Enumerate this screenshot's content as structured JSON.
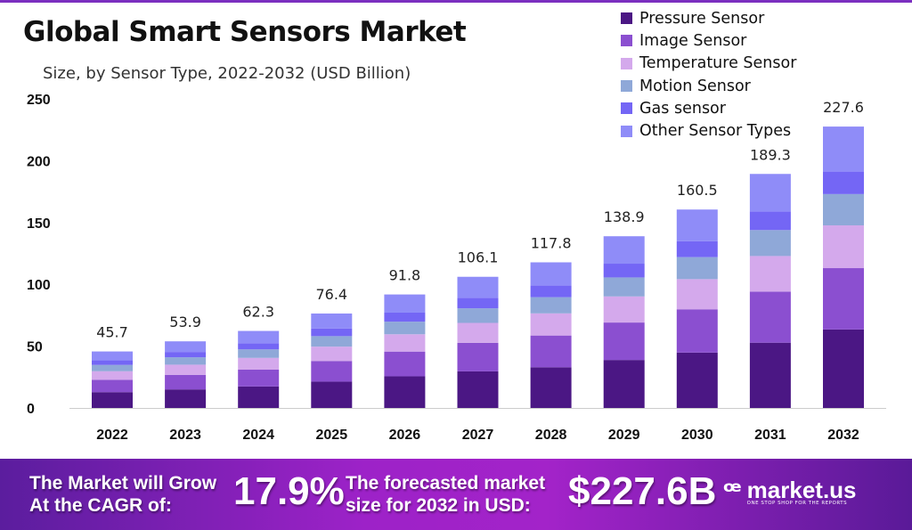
{
  "chart_data": {
    "type": "bar",
    "stacked": true,
    "title": "Global Smart Sensors Market",
    "subtitle": "Size, by Sensor Type, 2022-2032 (USD Billion)",
    "categories": [
      "2022",
      "2023",
      "2024",
      "2025",
      "2026",
      "2027",
      "2028",
      "2029",
      "2030",
      "2031",
      "2032"
    ],
    "totals": [
      "45.7",
      "53.9",
      "62.3",
      "76.4",
      "91.8",
      "106.1",
      "117.8",
      "138.9",
      "160.5",
      "189.3",
      "227.6"
    ],
    "series": [
      {
        "name": "Pressure Sensor",
        "color": "#4b1784",
        "values": [
          12.8,
          15.0,
          17.4,
          21.3,
          25.6,
          29.6,
          32.9,
          38.8,
          44.8,
          52.8,
          63.5
        ]
      },
      {
        "name": "Image Sensor",
        "color": "#8b4fd0",
        "values": [
          10.0,
          11.8,
          13.6,
          16.7,
          20.0,
          23.1,
          25.7,
          30.3,
          35.0,
          41.3,
          49.6
        ]
      },
      {
        "name": "Temperature Sensor",
        "color": "#d4a9ec",
        "values": [
          6.9,
          8.2,
          9.5,
          11.6,
          14.0,
          16.1,
          17.9,
          21.1,
          24.4,
          28.8,
          34.6
        ]
      },
      {
        "name": "Motion Sensor",
        "color": "#8fa8d8",
        "values": [
          5.1,
          6.0,
          6.9,
          8.5,
          10.2,
          11.8,
          13.1,
          15.4,
          17.8,
          21.0,
          25.3
        ]
      },
      {
        "name": "Gas sensor",
        "color": "#7466f5",
        "values": [
          3.7,
          4.3,
          5.0,
          6.1,
          7.3,
          8.5,
          9.4,
          11.1,
          12.8,
          15.1,
          18.2
        ]
      },
      {
        "name": "Other Sensor Types",
        "color": "#8f8cf8",
        "values": [
          7.2,
          8.6,
          9.9,
          12.2,
          14.7,
          17.0,
          18.8,
          22.2,
          25.7,
          30.3,
          36.4
        ]
      }
    ],
    "yticks": [
      "0",
      "50",
      "100",
      "150",
      "200",
      "250"
    ],
    "ylim": [
      0,
      250
    ],
    "grid": false,
    "legend": "top-right"
  },
  "banner": {
    "cagr_text": "The Market will Grow At the CAGR of:",
    "cagr_value": "17.9%",
    "forecast_text": "The forecasted market size for 2032 in USD:",
    "forecast_value": "$227.6B",
    "brand": "market.us",
    "tagline": "ONE STOP SHOP FOR THE REPORTS"
  }
}
